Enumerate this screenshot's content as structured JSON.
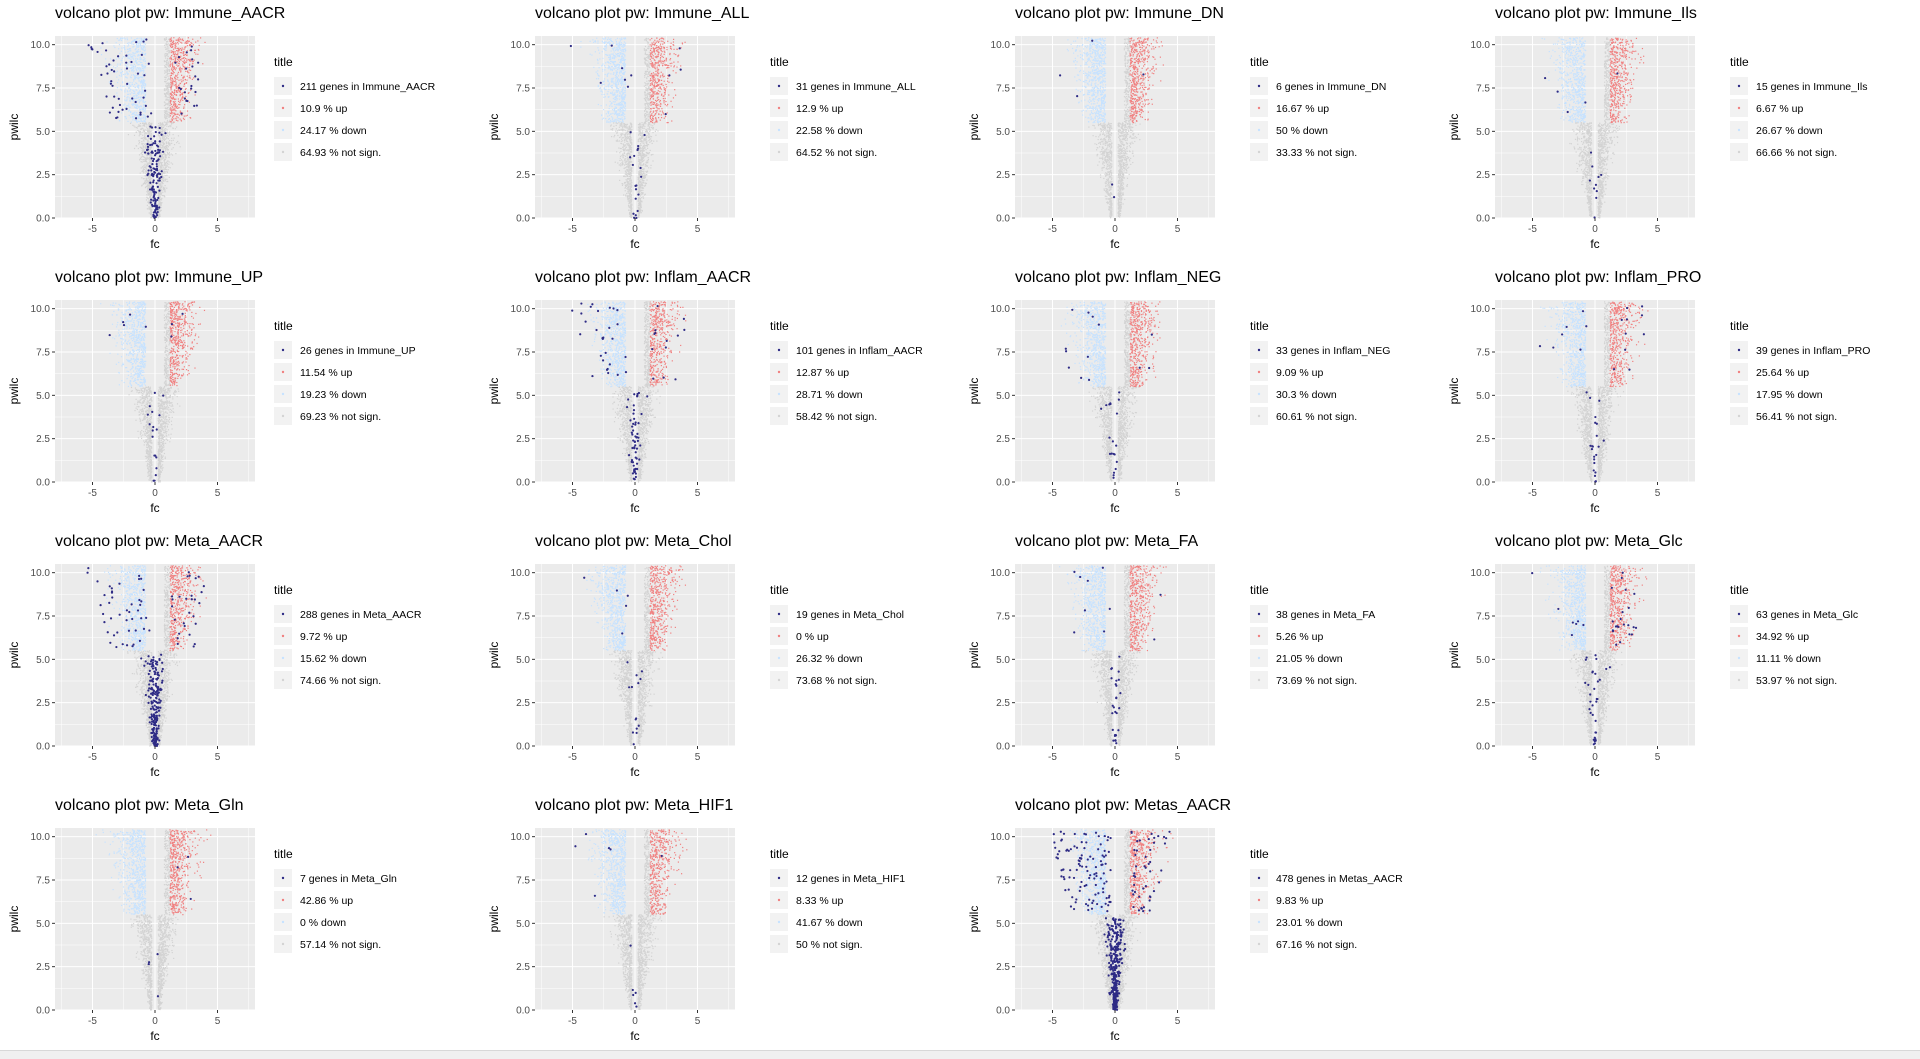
{
  "plot_title_prefix": "volcano plot pw:",
  "colors": {
    "panel_bg": "#ebebeb",
    "grid": "#ffffff",
    "up": "#f08080",
    "down": "#c6e2ff",
    "not_sign": "#d3d3d3",
    "pathway": "#2e2b85",
    "axis_text": "#4d4d4d"
  },
  "legend_title": "title",
  "chart_data": [
    {
      "type": "scatter",
      "title": "volcano plot pw:  Immune_AACR",
      "xlabel": "fc",
      "ylabel": "pwilc",
      "xlim": [
        -8,
        8
      ],
      "ylim": [
        0,
        10.5
      ],
      "x_ticks": [
        -5,
        0,
        5
      ],
      "y_ticks": [
        0.0,
        2.5,
        5.0,
        7.5,
        10.0
      ],
      "x_tick_labels": [
        "-5",
        "0",
        "5"
      ],
      "y_tick_labels": [
        "0.0",
        "2.5",
        "5.0",
        "7.5",
        "10.0"
      ],
      "legend": [
        "211 genes in Immune_AACR",
        "10.9 % up",
        "24.17 % down",
        "64.93 % not sign."
      ],
      "n_genes": 211,
      "pct_up": 10.9,
      "pct_down": 24.17,
      "pct_not_sign": 64.93
    },
    {
      "type": "scatter",
      "title": "volcano plot pw:  Immune_ALL",
      "xlabel": "fc",
      "ylabel": "pwilc",
      "xlim": [
        -8,
        8
      ],
      "ylim": [
        0,
        10.5
      ],
      "x_ticks": [
        -5,
        0,
        5
      ],
      "y_ticks": [
        0.0,
        2.5,
        5.0,
        7.5,
        10.0
      ],
      "x_tick_labels": [
        "-5",
        "0",
        "5"
      ],
      "y_tick_labels": [
        "0.0",
        "2.5",
        "5.0",
        "7.5",
        "10.0"
      ],
      "legend": [
        "31 genes in Immune_ALL",
        "12.9 % up",
        "22.58 % down",
        "64.52 % not sign."
      ],
      "n_genes": 31,
      "pct_up": 12.9,
      "pct_down": 22.58,
      "pct_not_sign": 64.52
    },
    {
      "type": "scatter",
      "title": "volcano plot pw:  Immune_DN",
      "xlabel": "fc",
      "ylabel": "pwilc",
      "xlim": [
        -8,
        8
      ],
      "ylim": [
        0,
        10.5
      ],
      "x_ticks": [
        -5,
        0,
        5
      ],
      "y_ticks": [
        0.0,
        2.5,
        5.0,
        7.5,
        10.0
      ],
      "x_tick_labels": [
        "-5",
        "0",
        "5"
      ],
      "y_tick_labels": [
        "0.0",
        "2.5",
        "5.0",
        "7.5",
        "10.0"
      ],
      "legend": [
        "6 genes in Immune_DN",
        "16.67 % up",
        "50 % down",
        "33.33 % not sign."
      ],
      "n_genes": 6,
      "pct_up": 16.67,
      "pct_down": 50,
      "pct_not_sign": 33.33
    },
    {
      "type": "scatter",
      "title": "volcano plot pw:  Immune_Ils",
      "xlabel": "fc",
      "ylabel": "pwilc",
      "xlim": [
        -8,
        8
      ],
      "ylim": [
        0,
        10.5
      ],
      "x_ticks": [
        -5,
        0,
        5
      ],
      "y_ticks": [
        0.0,
        2.5,
        5.0,
        7.5,
        10.0
      ],
      "x_tick_labels": [
        "-5",
        "0",
        "5"
      ],
      "y_tick_labels": [
        "0.0",
        "2.5",
        "5.0",
        "7.5",
        "10.0"
      ],
      "legend": [
        "15 genes in Immune_Ils",
        "6.67 % up",
        "26.67 % down",
        "66.66 % not sign."
      ],
      "n_genes": 15,
      "pct_up": 6.67,
      "pct_down": 26.67,
      "pct_not_sign": 66.66
    },
    {
      "type": "scatter",
      "title": "volcano plot pw:  Immune_UP",
      "xlabel": "fc",
      "ylabel": "pwilc",
      "xlim": [
        -8,
        8
      ],
      "ylim": [
        0,
        10.5
      ],
      "x_ticks": [
        -5,
        0,
        5
      ],
      "y_ticks": [
        0.0,
        2.5,
        5.0,
        7.5,
        10.0
      ],
      "x_tick_labels": [
        "-5",
        "0",
        "5"
      ],
      "y_tick_labels": [
        "0.0",
        "2.5",
        "5.0",
        "7.5",
        "10.0"
      ],
      "legend": [
        "26 genes in Immune_UP",
        "11.54 % up",
        "19.23 % down",
        "69.23 % not sign."
      ],
      "n_genes": 26,
      "pct_up": 11.54,
      "pct_down": 19.23,
      "pct_not_sign": 69.23
    },
    {
      "type": "scatter",
      "title": "volcano plot pw:  Inflam_AACR",
      "xlabel": "fc",
      "ylabel": "pwilc",
      "xlim": [
        -8,
        8
      ],
      "ylim": [
        0,
        10.5
      ],
      "x_ticks": [
        -5,
        0,
        5
      ],
      "y_ticks": [
        0.0,
        2.5,
        5.0,
        7.5,
        10.0
      ],
      "x_tick_labels": [
        "-5",
        "0",
        "5"
      ],
      "y_tick_labels": [
        "0.0",
        "2.5",
        "5.0",
        "7.5",
        "10.0"
      ],
      "legend": [
        "101 genes in Inflam_AACR",
        "12.87 % up",
        "28.71 % down",
        "58.42 % not sign."
      ],
      "n_genes": 101,
      "pct_up": 12.87,
      "pct_down": 28.71,
      "pct_not_sign": 58.42
    },
    {
      "type": "scatter",
      "title": "volcano plot pw:  Inflam_NEG",
      "xlabel": "fc",
      "ylabel": "pwilc",
      "xlim": [
        -8,
        8
      ],
      "ylim": [
        0,
        10.5
      ],
      "x_ticks": [
        -5,
        0,
        5
      ],
      "y_ticks": [
        0.0,
        2.5,
        5.0,
        7.5,
        10.0
      ],
      "x_tick_labels": [
        "-5",
        "0",
        "5"
      ],
      "y_tick_labels": [
        "0.0",
        "2.5",
        "5.0",
        "7.5",
        "10.0"
      ],
      "legend": [
        "33 genes in Inflam_NEG",
        "9.09 % up",
        "30.3 % down",
        "60.61 % not sign."
      ],
      "n_genes": 33,
      "pct_up": 9.09,
      "pct_down": 30.3,
      "pct_not_sign": 60.61
    },
    {
      "type": "scatter",
      "title": "volcano plot pw:  Inflam_PRO",
      "xlabel": "fc",
      "ylabel": "pwilc",
      "xlim": [
        -8,
        8
      ],
      "ylim": [
        0,
        10.5
      ],
      "x_ticks": [
        -5,
        0,
        5
      ],
      "y_ticks": [
        0.0,
        2.5,
        5.0,
        7.5,
        10.0
      ],
      "x_tick_labels": [
        "-5",
        "0",
        "5"
      ],
      "y_tick_labels": [
        "0.0",
        "2.5",
        "5.0",
        "7.5",
        "10.0"
      ],
      "legend": [
        "39 genes in Inflam_PRO",
        "25.64 % up",
        "17.95 % down",
        "56.41 % not sign."
      ],
      "n_genes": 39,
      "pct_up": 25.64,
      "pct_down": 17.95,
      "pct_not_sign": 56.41
    },
    {
      "type": "scatter",
      "title": "volcano plot pw:  Meta_AACR",
      "xlabel": "fc",
      "ylabel": "pwilc",
      "xlim": [
        -8,
        8
      ],
      "ylim": [
        0,
        10.5
      ],
      "x_ticks": [
        -5,
        0,
        5
      ],
      "y_ticks": [
        0.0,
        2.5,
        5.0,
        7.5,
        10.0
      ],
      "x_tick_labels": [
        "-5",
        "0",
        "5"
      ],
      "y_tick_labels": [
        "0.0",
        "2.5",
        "5.0",
        "7.5",
        "10.0"
      ],
      "legend": [
        "288 genes in Meta_AACR",
        "9.72 % up",
        "15.62 % down",
        "74.66 % not sign."
      ],
      "n_genes": 288,
      "pct_up": 9.72,
      "pct_down": 15.62,
      "pct_not_sign": 74.66
    },
    {
      "type": "scatter",
      "title": "volcano plot pw:  Meta_Chol",
      "xlabel": "fc",
      "ylabel": "pwilc",
      "xlim": [
        -8,
        8
      ],
      "ylim": [
        0,
        10.5
      ],
      "x_ticks": [
        -5,
        0,
        5
      ],
      "y_ticks": [
        0.0,
        2.5,
        5.0,
        7.5,
        10.0
      ],
      "x_tick_labels": [
        "-5",
        "0",
        "5"
      ],
      "y_tick_labels": [
        "0.0",
        "2.5",
        "5.0",
        "7.5",
        "10.0"
      ],
      "legend": [
        "19 genes in Meta_Chol",
        "0 % up",
        "26.32 % down",
        "73.68 % not sign."
      ],
      "n_genes": 19,
      "pct_up": 0,
      "pct_down": 26.32,
      "pct_not_sign": 73.68
    },
    {
      "type": "scatter",
      "title": "volcano plot pw:  Meta_FA",
      "xlabel": "fc",
      "ylabel": "pwilc",
      "xlim": [
        -8,
        8
      ],
      "ylim": [
        0,
        10.5
      ],
      "x_ticks": [
        -5,
        0,
        5
      ],
      "y_ticks": [
        0.0,
        2.5,
        5.0,
        7.5,
        10.0
      ],
      "x_tick_labels": [
        "-5",
        "0",
        "5"
      ],
      "y_tick_labels": [
        "0.0",
        "2.5",
        "5.0",
        "7.5",
        "10.0"
      ],
      "legend": [
        "38 genes in Meta_FA",
        "5.26 % up",
        "21.05 % down",
        "73.69 % not sign."
      ],
      "n_genes": 38,
      "pct_up": 5.26,
      "pct_down": 21.05,
      "pct_not_sign": 73.69
    },
    {
      "type": "scatter",
      "title": "volcano plot pw:  Meta_Glc",
      "xlabel": "fc",
      "ylabel": "pwilc",
      "xlim": [
        -8,
        8
      ],
      "ylim": [
        0,
        10.5
      ],
      "x_ticks": [
        -5,
        0,
        5
      ],
      "y_ticks": [
        0.0,
        2.5,
        5.0,
        7.5,
        10.0
      ],
      "x_tick_labels": [
        "-5",
        "0",
        "5"
      ],
      "y_tick_labels": [
        "0.0",
        "2.5",
        "5.0",
        "7.5",
        "10.0"
      ],
      "legend": [
        "63 genes in Meta_Glc",
        "34.92 % up",
        "11.11 % down",
        "53.97 % not sign."
      ],
      "n_genes": 63,
      "pct_up": 34.92,
      "pct_down": 11.11,
      "pct_not_sign": 53.97
    },
    {
      "type": "scatter",
      "title": "volcano plot pw:  Meta_Gln",
      "xlabel": "fc",
      "ylabel": "pwilc",
      "xlim": [
        -8,
        8
      ],
      "ylim": [
        0,
        10.5
      ],
      "x_ticks": [
        -5,
        0,
        5
      ],
      "y_ticks": [
        0.0,
        2.5,
        5.0,
        7.5,
        10.0
      ],
      "x_tick_labels": [
        "-5",
        "0",
        "5"
      ],
      "y_tick_labels": [
        "0.0",
        "2.5",
        "5.0",
        "7.5",
        "10.0"
      ],
      "legend": [
        "7 genes in Meta_Gln",
        "42.86 % up",
        "0 % down",
        "57.14 % not sign."
      ],
      "n_genes": 7,
      "pct_up": 42.86,
      "pct_down": 0,
      "pct_not_sign": 57.14
    },
    {
      "type": "scatter",
      "title": "volcano plot pw:  Meta_HIF1",
      "xlabel": "fc",
      "ylabel": "pwilc",
      "xlim": [
        -8,
        8
      ],
      "ylim": [
        0,
        10.5
      ],
      "x_ticks": [
        -5,
        0,
        5
      ],
      "y_ticks": [
        0.0,
        2.5,
        5.0,
        7.5,
        10.0
      ],
      "x_tick_labels": [
        "-5",
        "0",
        "5"
      ],
      "y_tick_labels": [
        "0.0",
        "2.5",
        "5.0",
        "7.5",
        "10.0"
      ],
      "legend": [
        "12 genes in Meta_HIF1",
        "8.33 % up",
        "41.67 % down",
        "50 % not sign."
      ],
      "n_genes": 12,
      "pct_up": 8.33,
      "pct_down": 41.67,
      "pct_not_sign": 50
    },
    {
      "type": "scatter",
      "title": "volcano plot pw:  Metas_AACR",
      "xlabel": "fc",
      "ylabel": "pwilc",
      "xlim": [
        -8,
        8
      ],
      "ylim": [
        0,
        10.5
      ],
      "x_ticks": [
        -5,
        0,
        5
      ],
      "y_ticks": [
        0.0,
        2.5,
        5.0,
        7.5,
        10.0
      ],
      "x_tick_labels": [
        "-5",
        "0",
        "5"
      ],
      "y_tick_labels": [
        "0.0",
        "2.5",
        "5.0",
        "7.5",
        "10.0"
      ],
      "legend": [
        "478 genes in Metas_AACR",
        "9.83 % up",
        "23.01 % down",
        "67.16 % not sign."
      ],
      "n_genes": 478,
      "pct_up": 9.83,
      "pct_down": 23.01,
      "pct_not_sign": 67.16
    }
  ]
}
